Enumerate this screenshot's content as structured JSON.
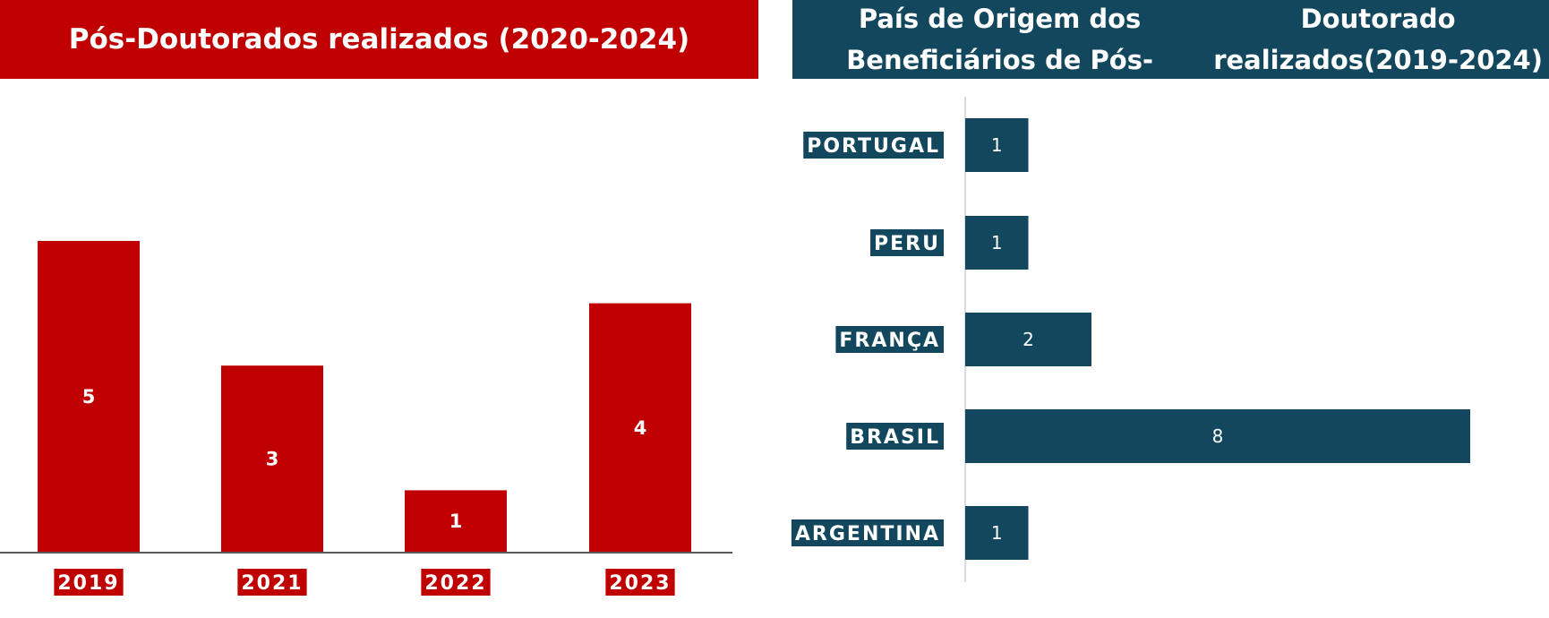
{
  "colors": {
    "left_accent": "#c00000",
    "right_accent": "#12475e",
    "axis": "#595959",
    "bar_text": "#ffffff"
  },
  "left_chart": {
    "title": "Pós-Doutorados realizados (2020-2024)"
  },
  "right_chart": {
    "title_line1": "País de Origem dos Beneficiários de Pós-",
    "title_line2": "Doutorado realizados(2019-2024)"
  },
  "chart_data": [
    {
      "type": "bar",
      "title": "Pós-Doutorados realizados (2020-2024)",
      "categories": [
        "2019",
        "2021",
        "2022",
        "2023"
      ],
      "values": [
        5,
        3,
        1,
        4
      ],
      "xlabel": "",
      "ylabel": "",
      "ylim": [
        0,
        5.5
      ],
      "grid": false,
      "legend": "none"
    },
    {
      "type": "bar",
      "orientation": "horizontal",
      "title": "País de Origem dos Beneficiários de Pós-Doutorado realizados(2019-2024)",
      "categories": [
        "PORTUGAL",
        "PERU",
        "FRANÇA",
        "BRASIL",
        "ARGENTINA"
      ],
      "values": [
        1,
        1,
        2,
        8,
        1
      ],
      "xlabel": "",
      "ylabel": "",
      "xlim": [
        0,
        8
      ],
      "grid": false,
      "legend": "none"
    }
  ]
}
